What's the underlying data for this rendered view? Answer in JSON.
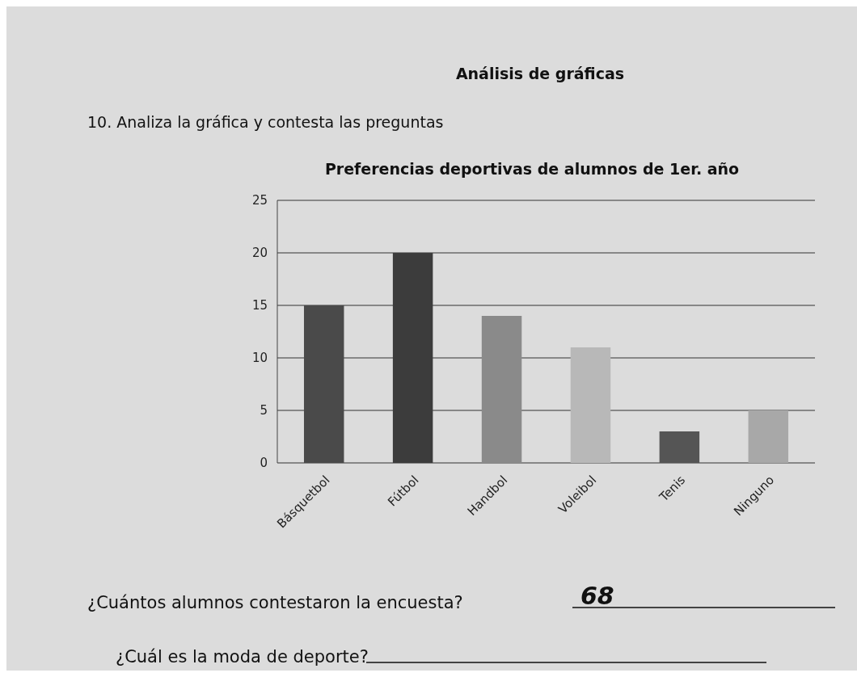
{
  "chart_data": {
    "type": "bar",
    "title": "Preferencias deportivas de alumnos de 1er. año",
    "categories": [
      "Básquetbol",
      "Fútbol",
      "Handbol",
      "Voleibol",
      "Tenis",
      "Ninguno"
    ],
    "values": [
      15,
      20,
      14,
      11,
      3,
      5
    ],
    "colors": [
      "#4a4a4a",
      "#3c3c3c",
      "#8a8a8a",
      "#b8b8b8",
      "#555555",
      "#a8a8a8"
    ],
    "ylim": [
      0,
      25
    ],
    "yticks": [
      0,
      5,
      10,
      15,
      20,
      25
    ],
    "grid": "y",
    "annotations": [
      "Análisis de gráficas",
      "10. Analiza la gráfica y contesta las preguntas",
      "¿Cuántos alumnos contestaron la encuesta?",
      "68",
      "¿Cuál es la moda de deporte?"
    ]
  }
}
